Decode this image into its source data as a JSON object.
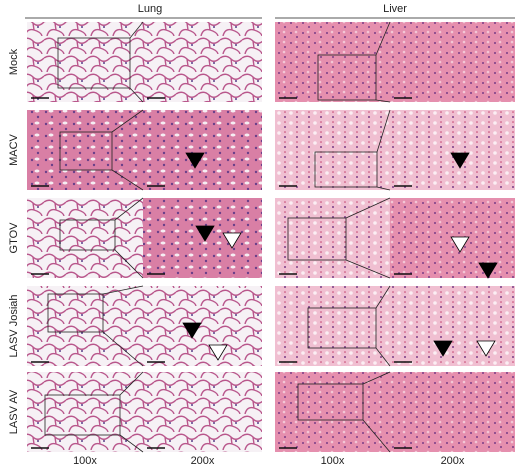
{
  "headers": [
    "Lung",
    "Liver"
  ],
  "rows": [
    "Mock",
    "MACV",
    "GTOV",
    "LASV Josiah",
    "LASV AV"
  ],
  "magnifications": [
    "100x",
    "200x",
    "100x",
    "200x"
  ]
}
